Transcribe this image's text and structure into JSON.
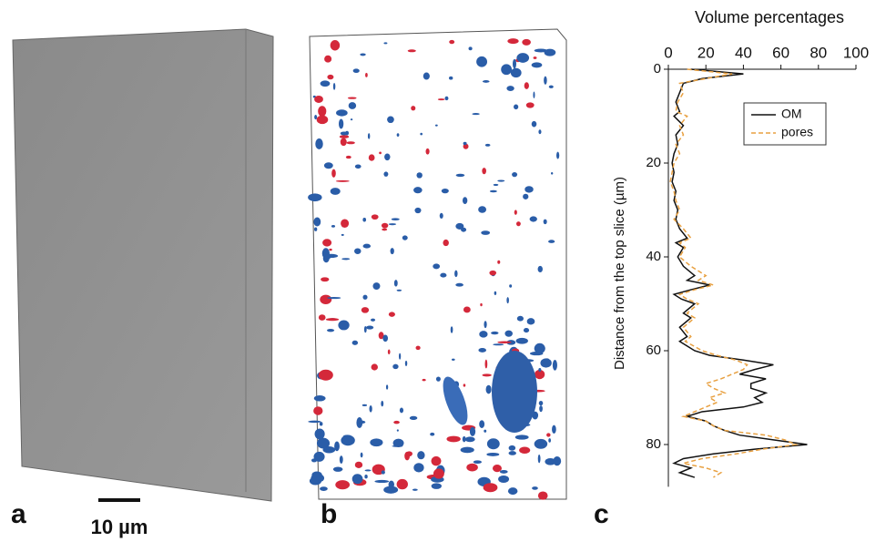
{
  "panel_labels": [
    "a",
    "b",
    "c"
  ],
  "scale_bar": "10 µm",
  "chart_data": {
    "type": "line",
    "orientation": "vertical",
    "title": "Volume percentages",
    "y_label": "Distance from the top slice (µm)",
    "xlim": [
      0,
      100
    ],
    "xticks": [
      0,
      20,
      40,
      60,
      80,
      100
    ],
    "ylim": [
      0,
      89
    ],
    "yticks": [
      0,
      20,
      40,
      60,
      80
    ],
    "y_inverted": true,
    "legend": "upper right",
    "y": [
      0,
      1,
      2,
      3,
      5,
      7,
      9,
      10,
      12,
      14,
      16,
      18,
      20,
      22,
      24,
      26,
      28,
      30,
      32,
      34,
      36,
      37,
      38,
      40,
      42,
      44,
      45,
      46,
      47,
      48,
      49,
      50,
      52,
      53,
      55,
      57,
      58,
      60,
      61,
      62,
      63,
      64,
      65,
      66,
      67,
      68,
      69,
      70,
      71,
      72,
      73,
      74,
      75,
      76,
      77,
      78,
      79,
      80,
      81,
      82,
      83,
      84,
      85,
      86,
      87
    ],
    "series": [
      {
        "name": "OM",
        "color": "#111111",
        "dash": false,
        "values": [
          12,
          40,
          18,
          8,
          6,
          4,
          6,
          3,
          8,
          4,
          5,
          3,
          2,
          3,
          2,
          4,
          3,
          5,
          4,
          6,
          10,
          4,
          8,
          5,
          8,
          14,
          10,
          22,
          12,
          3,
          7,
          14,
          8,
          12,
          6,
          10,
          6,
          14,
          22,
          40,
          56,
          46,
          38,
          52,
          44,
          44,
          52,
          46,
          50,
          40,
          18,
          10,
          20,
          24,
          30,
          38,
          56,
          74,
          46,
          24,
          8,
          3,
          12,
          6,
          14
        ]
      },
      {
        "name": "pores",
        "color": "#e8a040",
        "dash": true,
        "values": [
          10,
          34,
          20,
          6,
          8,
          5,
          4,
          10,
          6,
          8,
          4,
          6,
          3,
          2,
          1,
          3,
          4,
          6,
          3,
          8,
          12,
          6,
          9,
          6,
          12,
          20,
          16,
          24,
          14,
          6,
          10,
          16,
          10,
          14,
          8,
          12,
          9,
          18,
          26,
          36,
          42,
          40,
          34,
          28,
          20,
          24,
          30,
          22,
          26,
          20,
          14,
          8,
          20,
          24,
          30,
          52,
          62,
          68,
          50,
          36,
          18,
          8,
          20,
          28,
          24
        ]
      }
    ]
  }
}
